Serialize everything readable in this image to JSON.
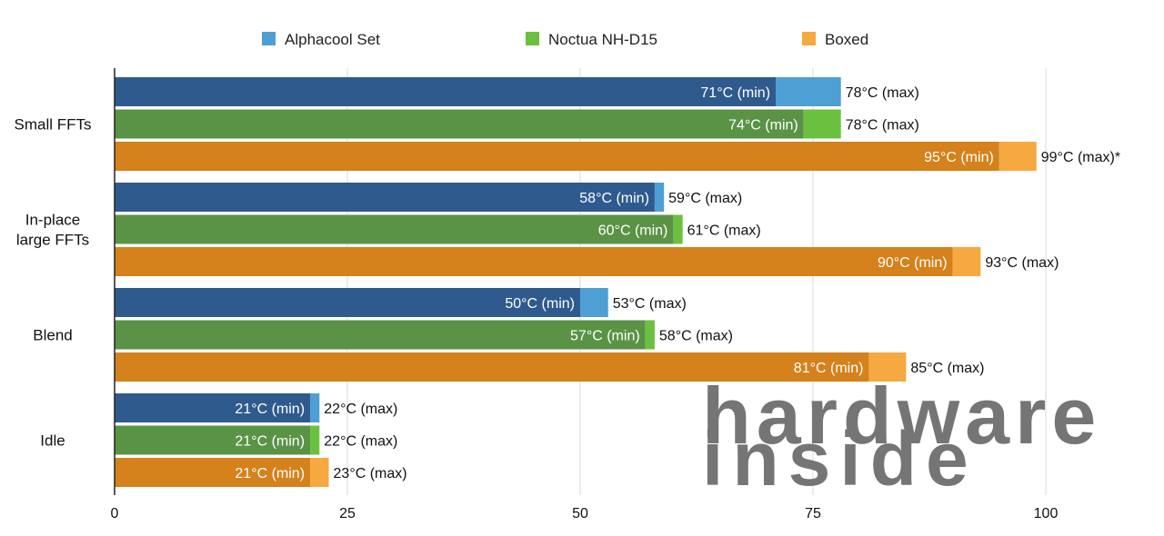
{
  "chart_data": {
    "type": "bar",
    "orientation": "horizontal",
    "stacked_range": true,
    "categories": [
      "Small FFTs",
      "In-place large FFTs",
      "Blend",
      "Idle"
    ],
    "category_label_lines": [
      [
        "Small FFTs"
      ],
      [
        "In-place",
        "large FFTs"
      ],
      [
        "Blend"
      ],
      [
        "Idle"
      ]
    ],
    "series": [
      {
        "name": "Alphacool Set",
        "color_min": "#2f5a8e",
        "color_max": "#4d9fd4",
        "legend_color": "#4d9fd4",
        "min": [
          71,
          58,
          50,
          21
        ],
        "max": [
          78,
          59,
          53,
          22
        ],
        "min_labels": [
          "71°C (min)",
          "58°C (min)",
          "50°C (min)",
          "21°C (min)"
        ],
        "max_labels": [
          "78°C (max)",
          "59°C (max)",
          "53°C (max)",
          "22°C (max)"
        ]
      },
      {
        "name": "Noctua NH-D15",
        "color_min": "#5a9346",
        "color_max": "#6cc040",
        "legend_color": "#6cc040",
        "min": [
          74,
          60,
          57,
          21
        ],
        "max": [
          78,
          61,
          58,
          22
        ],
        "min_labels": [
          "74°C (min)",
          "60°C (min)",
          "57°C (min)",
          "21°C (min)"
        ],
        "max_labels": [
          "78°C (max)",
          "61°C (max)",
          "58°C (max)",
          "22°C (max)"
        ]
      },
      {
        "name": "Boxed",
        "color_min": "#d5811c",
        "color_max": "#f6a841",
        "legend_color": "#f6a841",
        "min": [
          95,
          90,
          81,
          21
        ],
        "max": [
          99,
          93,
          85,
          23
        ],
        "min_labels": [
          "95°C (min)",
          "90°C (min)",
          "81°C (min)",
          "21°C (min)"
        ],
        "max_labels": [
          "99°C (max)*",
          "93°C (max)",
          "85°C (max)",
          "23°C (max)"
        ]
      }
    ],
    "x_ticks": [
      0,
      25,
      50,
      75,
      100
    ],
    "x_tick_labels": [
      "0",
      "25",
      "50",
      "75",
      "100"
    ],
    "xlim": [
      0,
      100
    ],
    "grid": true,
    "legend_position": "top-center",
    "title": "",
    "xlabel": "",
    "ylabel": ""
  },
  "watermark": {
    "line1": "hardware",
    "line2": "inside"
  }
}
